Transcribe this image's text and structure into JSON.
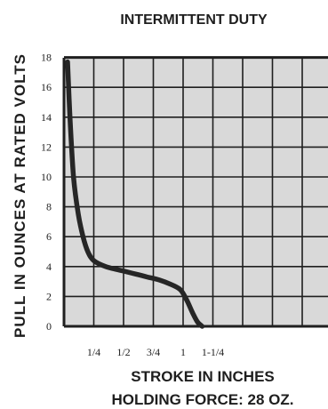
{
  "chart_data": {
    "type": "line",
    "title": "INTERMITTENT DUTY",
    "xlabel": "STROKE IN INCHES",
    "ylabel": "PULL IN OUNCES AT RATED VOLTS",
    "footer": "HOLDING FORCE: 28 OZ.",
    "y_ticks": [
      "0",
      "2",
      "4",
      "6",
      "8",
      "10",
      "12",
      "14",
      "16",
      "18"
    ],
    "x_ticks": [
      {
        "label": "1/4",
        "value": 0.25
      },
      {
        "label": "1/2",
        "value": 0.5
      },
      {
        "label": "3/4",
        "value": 0.75
      },
      {
        "label": "1",
        "value": 1.0
      },
      {
        "label": "1-1/4",
        "value": 1.25
      }
    ],
    "xlim": [
      0,
      2.25
    ],
    "ylim": [
      0,
      18
    ],
    "grid": true,
    "series": [
      {
        "x": [
          0.03,
          0.05,
          0.08,
          0.12,
          0.16,
          0.2,
          0.25,
          0.35,
          0.5,
          0.6,
          0.7,
          0.8,
          0.9,
          0.97,
          1.0,
          1.04,
          1.08,
          1.12,
          1.16
        ],
        "y": [
          17.7,
          14.0,
          10.0,
          7.5,
          6.0,
          5.0,
          4.4,
          4.0,
          3.7,
          3.5,
          3.3,
          3.1,
          2.8,
          2.5,
          2.2,
          1.6,
          0.9,
          0.3,
          0.0
        ]
      }
    ],
    "colors": {
      "line": "#262626",
      "grid": "#1f1f1f",
      "plot_bg": "#d9d9d9"
    }
  }
}
